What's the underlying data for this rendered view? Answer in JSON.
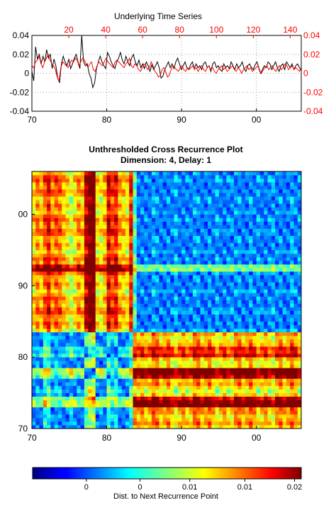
{
  "chart_data": [
    {
      "type": "line",
      "title": "Underlying Time Series",
      "xlabel": "",
      "ylabel": "",
      "x_bottom": {
        "ticks": [
          "70",
          "80",
          "90",
          "00"
        ],
        "range_years": [
          1970,
          2006
        ]
      },
      "x_top": {
        "ticks": [
          "20",
          "40",
          "60",
          "80",
          "100",
          "120",
          "140"
        ],
        "range": [
          0,
          146
        ],
        "color": "#ff0000"
      },
      "y_left": {
        "ticks": [
          "0.04",
          "0.02",
          "0",
          "-0.02",
          "-0.04"
        ],
        "ylim": [
          -0.04,
          0.04
        ]
      },
      "y_right": {
        "ticks": [
          "0.04",
          "0.02",
          "0",
          "-0.02",
          "-0.04"
        ],
        "ylim": [
          -0.04,
          0.04
        ],
        "color": "#ff0000"
      },
      "grid": true,
      "series": [
        {
          "color": "#000000",
          "axis": "bottom-left",
          "values": [
            0.002,
            -0.008,
            0.028,
            0.015,
            0.02,
            0.01,
            0.018,
            0.012,
            0.025,
            0.016,
            0.02,
            0.005,
            0.015,
            0.008,
            -0.005,
            -0.01,
            0.01,
            0.018,
            0.012,
            0.008,
            0.015,
            0.005,
            0.01,
            0.016,
            0.02,
            0.012,
            0.005,
            0.04,
            0.012,
            0.008,
            0.01,
            0.0,
            -0.005,
            -0.015,
            -0.01,
            0.005,
            0.012,
            0.018,
            0.012,
            0.008,
            0.005,
            0.022,
            0.018,
            0.012,
            0.008,
            0.005,
            0.012,
            0.016,
            0.022,
            0.014,
            0.01,
            0.018,
            0.012,
            0.008,
            0.016,
            0.02,
            0.012,
            0.008,
            0.014,
            0.006,
            0.01,
            0.005,
            0.012,
            0.008,
            0.002,
            0.009,
            0.004,
            0.008,
            0.012,
            0.006,
            -0.005,
            -0.003,
            0.004,
            0.008,
            0.012,
            0.006,
            0.01,
            0.005,
            0.012,
            0.016,
            0.01,
            0.004,
            0.008,
            0.012,
            0.006,
            0.004,
            0.009,
            0.012,
            0.005,
            0.01,
            0.006,
            0.008,
            0.004,
            0.01,
            0.012,
            0.006,
            0.008,
            0.002,
            0.01,
            0.012,
            0.006,
            0.008,
            0.004,
            0.002,
            0.01,
            0.006,
            0.008,
            0.005,
            0.012,
            0.008,
            0.004,
            0.01,
            0.006,
            0.008,
            0.012,
            0.005,
            0.002,
            0.008,
            0.01,
            0.006,
            0.004,
            0.009,
            0.012,
            0.006,
            0.0,
            0.004,
            0.008,
            0.006,
            0.012,
            0.01,
            0.004,
            0.008,
            0.012,
            0.006,
            0.002,
            0.008,
            0.01,
            0.004,
            0.012,
            0.009,
            0.006,
            0.01,
            0.004,
            0.008,
            0.01,
            0.006,
            0.003
          ]
        },
        {
          "color": "#ff0000",
          "axis": "top-right",
          "values": [
            0.008,
            0.006,
            0.012,
            0.014,
            0.018,
            0.01,
            0.006,
            0.012,
            0.016,
            0.02,
            0.014,
            0.01,
            0.008,
            0.004,
            -0.004,
            -0.008,
            0.006,
            0.012,
            0.01,
            0.008,
            0.006,
            0.01,
            0.014,
            0.012,
            0.016,
            0.014,
            0.008,
            0.012,
            0.016,
            0.014,
            0.01,
            0.006,
            0.01,
            0.012,
            0.004,
            0.002,
            0.008,
            0.012,
            0.01,
            0.008,
            0.012,
            0.016,
            0.012,
            0.01,
            0.008,
            0.006,
            0.012,
            0.014,
            0.012,
            0.01,
            0.008,
            0.006,
            0.01,
            0.012,
            0.016,
            0.008,
            0.006,
            0.01,
            0.008,
            0.004,
            0.002,
            0.006,
            0.01,
            0.008,
            0.004,
            0.006,
            0.012,
            0.008,
            0.002,
            0.0,
            -0.004,
            -0.002,
            0.004,
            0.006,
            0.002,
            -0.004,
            -0.002,
            0.004,
            0.008,
            0.006,
            0.004,
            0.002,
            0.006,
            0.008,
            0.004,
            0.002,
            0.006,
            0.004,
            0.006,
            0.008,
            0.004,
            0.006,
            0.002,
            0.006,
            0.008,
            0.004,
            0.002,
            0.006,
            0.008,
            0.004,
            0.006,
            0.002,
            0.0,
            0.004,
            0.006,
            0.008,
            0.004,
            0.006,
            0.002,
            0.004,
            0.006,
            0.008,
            0.004,
            0.002,
            0.006,
            0.004,
            0.0,
            0.004,
            0.006,
            0.008,
            0.004,
            0.006,
            0.002,
            0.004,
            0.006,
            0.008,
            0.002,
            0.0,
            0.004,
            0.006,
            0.008,
            0.004,
            0.006,
            0.008,
            0.004,
            0.002,
            0.006,
            0.008,
            0.004,
            0.006,
            0.01,
            0.008,
            0.004,
            0.006,
            0.008,
            0.004,
            0.006,
            0.004,
            0.002,
            0.006
          ]
        }
      ]
    },
    {
      "type": "heatmap",
      "title": "Unthresholded Cross Recurrence Plot",
      "subtitle": "Dimension: 4,  Delay: 1",
      "x_ticks": [
        "70",
        "80",
        "90",
        "00"
      ],
      "y_ticks": [
        "00",
        "90",
        "80",
        "70"
      ],
      "x_range_years": [
        1970,
        2006
      ],
      "y_range_years": [
        1970,
        2006
      ],
      "colormap": "jet",
      "grid": false,
      "description_of_values": "distance matrix"
    },
    {
      "type": "colorbar",
      "label": "Dist. to Next Recurrence Point",
      "ticks": [
        "0",
        "0",
        "0.01",
        "0.01",
        "0.02"
      ],
      "colormap": "jet"
    }
  ],
  "colors": {
    "series1": "#000000",
    "series2": "#ff0000",
    "grid": "#9a9a9a"
  }
}
